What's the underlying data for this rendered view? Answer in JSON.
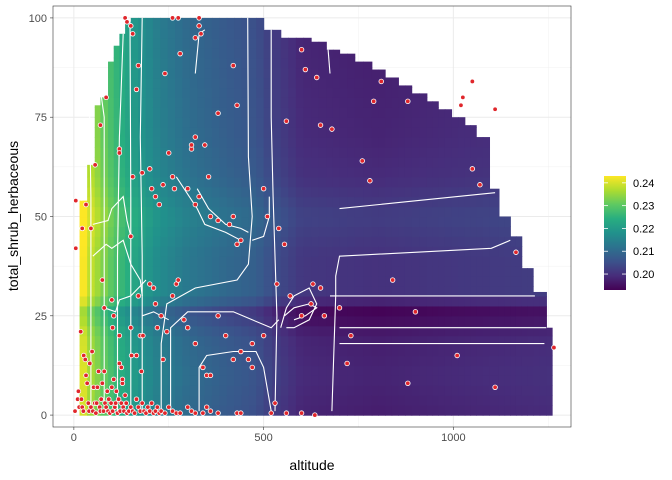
{
  "chart_data": {
    "type": "heatmap",
    "title": "",
    "xlabel": "altitude",
    "ylabel": "total_shrub_herbaceous",
    "xlim": [
      -55,
      1310
    ],
    "ylim": [
      -3,
      103
    ],
    "x_ticks": [
      0,
      500,
      1000
    ],
    "y_ticks": [
      0,
      25,
      50,
      75,
      100
    ],
    "grid": true,
    "legend": {
      "placement": "right",
      "min": 0.193,
      "max": 0.243,
      "ticks": [
        0.2,
        0.21,
        0.22,
        0.23,
        0.24
      ],
      "tick_labels": [
        "0.20",
        "0.21",
        "0.22",
        "0.23",
        "0.24"
      ],
      "colors": [
        "#440154",
        "#472d7b",
        "#3b528b",
        "#2c728e",
        "#21918c",
        "#28ae80",
        "#5ec962",
        "#addc30",
        "#fde725"
      ]
    },
    "domain_columns": [
      {
        "x0": 15,
        "x1": 35,
        "ymax": 54
      },
      {
        "x0": 35,
        "x1": 55,
        "ymax": 63
      },
      {
        "x0": 55,
        "x1": 70,
        "ymax": 78
      },
      {
        "x0": 70,
        "x1": 90,
        "ymax": 80
      },
      {
        "x0": 90,
        "x1": 105,
        "ymax": 89
      },
      {
        "x0": 105,
        "x1": 120,
        "ymax": 93
      },
      {
        "x0": 120,
        "x1": 135,
        "ymax": 96
      },
      {
        "x0": 135,
        "x1": 150,
        "ymax": 99
      },
      {
        "x0": 150,
        "x1": 500,
        "ymax": 100
      },
      {
        "x0": 500,
        "x1": 545,
        "ymax": 97
      },
      {
        "x0": 545,
        "x1": 625,
        "ymax": 95
      },
      {
        "x0": 625,
        "x1": 665,
        "ymax": 94
      },
      {
        "x0": 665,
        "x1": 700,
        "ymax": 92
      },
      {
        "x0": 700,
        "x1": 740,
        "ymax": 91
      },
      {
        "x0": 740,
        "x1": 785,
        "ymax": 89
      },
      {
        "x0": 785,
        "x1": 820,
        "ymax": 87
      },
      {
        "x0": 820,
        "x1": 855,
        "ymax": 85
      },
      {
        "x0": 855,
        "x1": 890,
        "ymax": 83
      },
      {
        "x0": 890,
        "x1": 930,
        "ymax": 81
      },
      {
        "x0": 930,
        "x1": 960,
        "ymax": 79
      },
      {
        "x0": 960,
        "x1": 995,
        "ymax": 77
      },
      {
        "x0": 995,
        "x1": 1030,
        "ymax": 75
      },
      {
        "x0": 1030,
        "x1": 1060,
        "ymax": 73
      },
      {
        "x0": 1060,
        "x1": 1095,
        "ymax": 70
      },
      {
        "x0": 1095,
        "x1": 1120,
        "ymax": 57
      },
      {
        "x0": 1120,
        "x1": 1150,
        "ymax": 50
      },
      {
        "x0": 1150,
        "x1": 1180,
        "ymax": 45
      },
      {
        "x0": 1180,
        "x1": 1210,
        "ymax": 37
      },
      {
        "x0": 1210,
        "x1": 1245,
        "ymax": 31
      },
      {
        "x0": 1245,
        "x1": 1260,
        "ymax": 22
      }
    ],
    "surface": {
      "x_levels": [
        [
          15,
          0.028
        ],
        [
          40,
          0.022
        ],
        [
          80,
          0.016
        ],
        [
          120,
          0.01
        ],
        [
          160,
          0.005
        ],
        [
          220,
          0.0
        ],
        [
          300,
          -0.004
        ],
        [
          400,
          -0.007
        ],
        [
          480,
          -0.009
        ],
        [
          520,
          -0.012
        ],
        [
          600,
          -0.016
        ],
        [
          800,
          -0.017
        ],
        [
          1000,
          -0.016
        ],
        [
          1260,
          -0.015
        ]
      ],
      "y_levels": [
        [
          0,
          0.0
        ],
        [
          10,
          0.001
        ],
        [
          20,
          0.0
        ],
        [
          26,
          -0.004
        ],
        [
          30,
          0.003
        ],
        [
          40,
          0.003
        ],
        [
          50,
          0.005
        ],
        [
          60,
          0.002
        ],
        [
          70,
          0.001
        ],
        [
          100,
          0.0
        ]
      ],
      "base": 0.214
    },
    "contour_lines": [
      [
        [
          45,
          1
        ],
        [
          45,
          55
        ],
        [
          40,
          85
        ]
      ],
      [
        [
          80,
          1
        ],
        [
          80,
          75
        ],
        [
          70,
          82
        ]
      ],
      [
        [
          115,
          1
        ],
        [
          115,
          40
        ],
        [
          120,
          70
        ],
        [
          130,
          96
        ]
      ],
      [
        [
          150,
          1
        ],
        [
          150,
          55
        ],
        [
          148,
          99
        ]
      ],
      [
        [
          180,
          1
        ],
        [
          180,
          40
        ],
        [
          175,
          70
        ],
        [
          180,
          100
        ]
      ],
      [
        [
          230,
          1
        ],
        [
          230,
          18
        ],
        [
          245,
          28
        ],
        [
          320,
          32
        ],
        [
          430,
          34
        ],
        [
          460,
          38
        ],
        [
          470,
          50
        ],
        [
          460,
          65
        ],
        [
          458,
          100
        ]
      ],
      [
        [
          255,
          1
        ],
        [
          255,
          22
        ],
        [
          300,
          26
        ],
        [
          420,
          26
        ],
        [
          470,
          24
        ],
        [
          520,
          22
        ],
        [
          540,
          24
        ]
      ],
      [
        [
          330,
          1
        ],
        [
          330,
          12
        ],
        [
          350,
          15
        ],
        [
          420,
          16
        ],
        [
          480,
          16
        ],
        [
          500,
          12
        ],
        [
          520,
          1
        ]
      ],
      [
        [
          530,
          1
        ],
        [
          535,
          25
        ],
        [
          530,
          40
        ],
        [
          525,
          55
        ],
        [
          520,
          75
        ],
        [
          520,
          97
        ]
      ],
      [
        [
          680,
          1
        ],
        [
          690,
          30
        ],
        [
          690,
          35
        ],
        [
          700,
          40
        ],
        [
          1100,
          42
        ],
        [
          1150,
          44
        ]
      ],
      [
        [
          700,
          52
        ],
        [
          1110,
          56
        ]
      ],
      [
        [
          700,
          18
        ],
        [
          1240,
          18
        ]
      ],
      [
        [
          700,
          22
        ],
        [
          1245,
          22
        ]
      ],
      [
        [
          675,
          30
        ],
        [
          1215,
          30
        ]
      ],
      [
        [
          675,
          86
        ],
        [
          670,
          92
        ]
      ],
      [
        [
          20,
          54
        ],
        [
          20,
          60
        ],
        [
          30,
          62
        ]
      ],
      [
        [
          50,
          48
        ],
        [
          90,
          49
        ],
        [
          100,
          52
        ],
        [
          130,
          55
        ],
        [
          140,
          49
        ],
        [
          150,
          45
        ]
      ],
      [
        [
          50,
          40
        ],
        [
          85,
          43
        ],
        [
          100,
          42
        ],
        [
          130,
          44
        ],
        [
          150,
          38
        ],
        [
          175,
          34
        ],
        [
          180,
          30
        ]
      ],
      [
        [
          80,
          27
        ],
        [
          110,
          26
        ],
        [
          120,
          29
        ],
        [
          150,
          30
        ],
        [
          170,
          32
        ],
        [
          190,
          34
        ]
      ],
      [
        [
          180,
          25
        ],
        [
          210,
          26
        ],
        [
          250,
          24
        ]
      ],
      [
        [
          545,
          22
        ],
        [
          560,
          27
        ],
        [
          580,
          30
        ],
        [
          620,
          32
        ],
        [
          640,
          28
        ],
        [
          620,
          24
        ],
        [
          580,
          22
        ],
        [
          560,
          22
        ]
      ],
      [
        [
          555,
          25
        ],
        [
          580,
          27
        ],
        [
          620,
          28
        ],
        [
          640,
          27
        ],
        [
          610,
          25
        ],
        [
          580,
          24
        ]
      ],
      [
        [
          320,
          86
        ],
        [
          330,
          96
        ],
        [
          345,
          97
        ]
      ],
      [
        [
          325,
          57
        ],
        [
          355,
          52
        ],
        [
          400,
          48
        ],
        [
          440,
          47
        ],
        [
          460,
          46
        ]
      ],
      [
        [
          270,
          60
        ],
        [
          325,
          52
        ],
        [
          345,
          48
        ],
        [
          400,
          46
        ],
        [
          440,
          44
        ]
      ],
      [
        [
          470,
          44
        ],
        [
          500,
          45
        ],
        [
          515,
          50
        ],
        [
          515,
          55
        ]
      ]
    ],
    "points": [
      [
        3,
        1
      ],
      [
        10,
        4
      ],
      [
        12,
        6
      ],
      [
        14,
        2
      ],
      [
        18,
        21
      ],
      [
        20,
        4
      ],
      [
        22,
        2
      ],
      [
        25,
        1
      ],
      [
        26,
        15
      ],
      [
        30,
        14
      ],
      [
        32,
        10
      ],
      [
        35,
        8
      ],
      [
        38,
        3
      ],
      [
        40,
        1
      ],
      [
        42,
        13
      ],
      [
        45,
        2
      ],
      [
        48,
        16
      ],
      [
        50,
        1
      ],
      [
        52,
        7
      ],
      [
        55,
        3
      ],
      [
        58,
        0.5
      ],
      [
        60,
        3
      ],
      [
        62,
        7
      ],
      [
        65,
        11
      ],
      [
        68,
        2
      ],
      [
        70,
        1
      ],
      [
        72,
        4
      ],
      [
        75,
        8
      ],
      [
        78,
        1
      ],
      [
        80,
        11
      ],
      [
        82,
        3
      ],
      [
        85,
        2
      ],
      [
        88,
        6
      ],
      [
        90,
        1
      ],
      [
        92,
        4
      ],
      [
        95,
        0.5
      ],
      [
        98,
        3
      ],
      [
        100,
        7
      ],
      [
        102,
        1
      ],
      [
        105,
        9
      ],
      [
        108,
        2
      ],
      [
        110,
        3
      ],
      [
        112,
        6
      ],
      [
        115,
        0.5
      ],
      [
        118,
        4
      ],
      [
        120,
        13
      ],
      [
        122,
        1
      ],
      [
        125,
        3
      ],
      [
        128,
        8
      ],
      [
        130,
        2
      ],
      [
        132,
        1
      ],
      [
        135,
        5
      ],
      [
        138,
        3
      ],
      [
        140,
        0.5
      ],
      [
        145,
        1
      ],
      [
        150,
        2
      ],
      [
        155,
        1
      ],
      [
        160,
        0.5
      ],
      [
        165,
        4
      ],
      [
        170,
        2
      ],
      [
        175,
        1
      ],
      [
        180,
        3
      ],
      [
        185,
        1
      ],
      [
        190,
        0.5
      ],
      [
        195,
        2
      ],
      [
        200,
        1
      ],
      [
        205,
        3
      ],
      [
        210,
        0.5
      ],
      [
        215,
        1
      ],
      [
        220,
        2
      ],
      [
        225,
        0.5
      ],
      [
        230,
        1
      ],
      [
        240,
        0.5
      ],
      [
        250,
        2
      ],
      [
        260,
        1
      ],
      [
        270,
        0.5
      ],
      [
        280,
        0.5
      ],
      [
        300,
        2
      ],
      [
        310,
        1
      ],
      [
        320,
        0.5
      ],
      [
        340,
        0.5
      ],
      [
        350,
        2
      ],
      [
        360,
        1
      ],
      [
        380,
        0.5
      ],
      [
        430,
        0.5
      ],
      [
        440,
        0.5
      ],
      [
        520,
        0.5
      ],
      [
        560,
        0.5
      ],
      [
        600,
        0.5
      ],
      [
        635,
        0
      ],
      [
        5,
        54
      ],
      [
        5,
        42
      ],
      [
        22,
        47
      ],
      [
        45,
        47
      ],
      [
        32,
        53
      ],
      [
        56,
        63
      ],
      [
        85,
        80
      ],
      [
        75,
        34
      ],
      [
        80,
        27
      ],
      [
        100,
        29
      ],
      [
        102,
        22
      ],
      [
        105,
        25
      ],
      [
        120,
        20
      ],
      [
        125,
        12
      ],
      [
        128,
        9
      ],
      [
        150,
        22
      ],
      [
        152,
        15
      ],
      [
        165,
        15
      ],
      [
        170,
        30
      ],
      [
        175,
        20
      ],
      [
        178,
        11
      ],
      [
        182,
        20
      ],
      [
        200,
        33
      ],
      [
        210,
        32
      ],
      [
        215,
        28
      ],
      [
        220,
        22
      ],
      [
        230,
        25
      ],
      [
        235,
        14
      ],
      [
        245,
        21
      ],
      [
        260,
        30
      ],
      [
        270,
        33
      ],
      [
        275,
        34
      ],
      [
        290,
        24
      ],
      [
        300,
        22
      ],
      [
        320,
        18
      ],
      [
        340,
        12
      ],
      [
        350,
        10
      ],
      [
        360,
        10
      ],
      [
        380,
        25
      ],
      [
        400,
        20
      ],
      [
        420,
        14
      ],
      [
        440,
        16
      ],
      [
        460,
        14
      ],
      [
        470,
        18
      ],
      [
        470,
        12
      ],
      [
        500,
        20
      ],
      [
        530,
        3
      ],
      [
        535,
        33
      ],
      [
        570,
        30
      ],
      [
        600,
        25
      ],
      [
        625,
        28
      ],
      [
        630,
        33
      ],
      [
        650,
        32
      ],
      [
        660,
        25
      ],
      [
        700,
        27
      ],
      [
        720,
        13
      ],
      [
        730,
        20
      ],
      [
        840,
        34
      ],
      [
        900,
        26
      ],
      [
        880,
        8
      ],
      [
        1010,
        15
      ],
      [
        1110,
        7
      ],
      [
        1165,
        41
      ],
      [
        1265,
        17
      ],
      [
        135,
        100
      ],
      [
        140,
        99
      ],
      [
        150,
        98
      ],
      [
        155,
        96
      ],
      [
        260,
        100
      ],
      [
        275,
        100
      ],
      [
        330,
        98
      ],
      [
        335,
        96
      ],
      [
        420,
        88
      ],
      [
        320,
        95
      ],
      [
        200,
        62
      ],
      [
        205,
        57
      ],
      [
        215,
        55
      ],
      [
        225,
        53
      ],
      [
        235,
        58
      ],
      [
        250,
        66
      ],
      [
        260,
        60
      ],
      [
        265,
        57
      ],
      [
        300,
        57
      ],
      [
        310,
        67
      ],
      [
        320,
        53
      ],
      [
        320,
        70
      ],
      [
        330,
        55
      ],
      [
        345,
        68
      ],
      [
        355,
        60
      ],
      [
        360,
        50
      ],
      [
        380,
        49
      ],
      [
        410,
        48
      ],
      [
        420,
        50
      ],
      [
        430,
        43
      ],
      [
        440,
        44
      ],
      [
        500,
        57
      ],
      [
        510,
        50
      ],
      [
        540,
        47
      ],
      [
        555,
        43
      ],
      [
        600,
        92
      ],
      [
        610,
        87
      ],
      [
        640,
        85
      ],
      [
        680,
        72
      ],
      [
        760,
        64
      ],
      [
        780,
        59
      ],
      [
        880,
        79
      ],
      [
        1050,
        84
      ],
      [
        1050,
        62
      ],
      [
        1070,
        58
      ],
      [
        1110,
        77
      ],
      [
        1110,
        77
      ],
      [
        70,
        73
      ],
      [
        120,
        67
      ],
      [
        120,
        66
      ],
      [
        150,
        45
      ],
      [
        155,
        60
      ],
      [
        165,
        82
      ],
      [
        170,
        88
      ],
      [
        180,
        61
      ],
      [
        240,
        86
      ],
      [
        280,
        91
      ],
      [
        310,
        68
      ],
      [
        330,
        100
      ],
      [
        380,
        76
      ],
      [
        430,
        78
      ],
      [
        560,
        74
      ],
      [
        650,
        73
      ],
      [
        790,
        79
      ],
      [
        810,
        84
      ],
      [
        1020,
        78
      ],
      [
        1025,
        80
      ],
      [
        1050,
        84
      ]
    ]
  }
}
